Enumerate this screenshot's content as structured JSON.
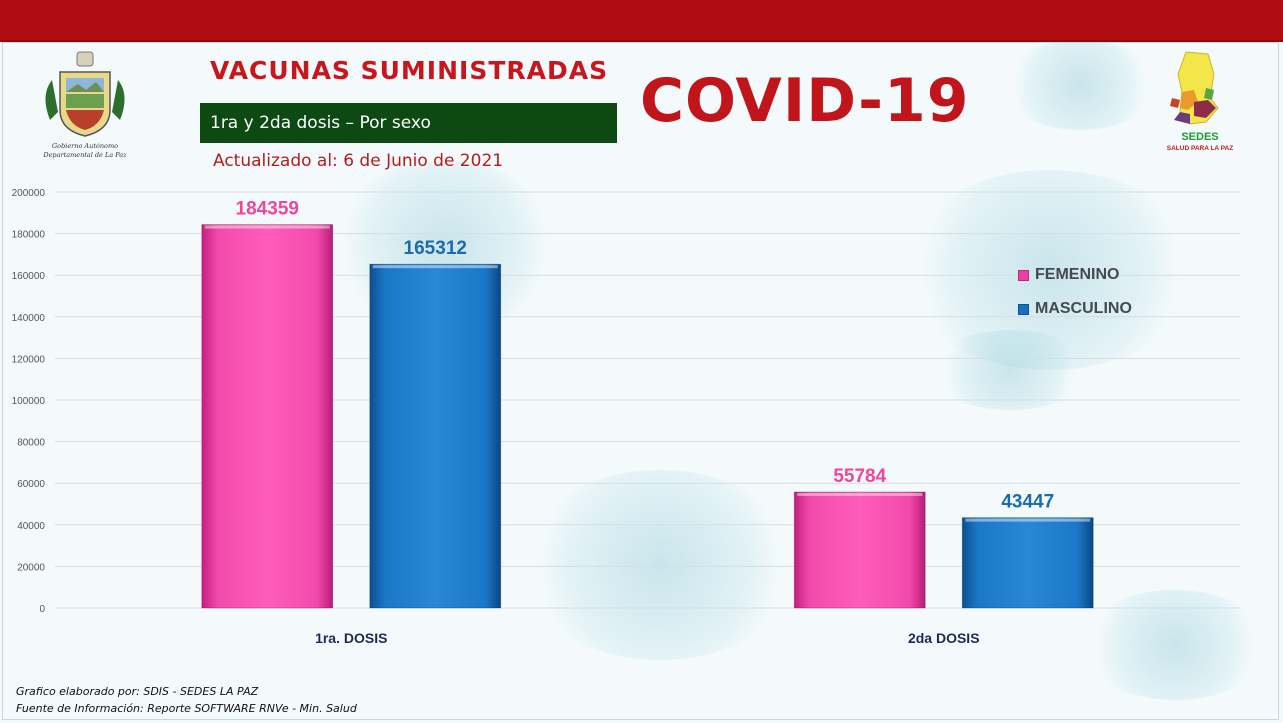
{
  "header": {
    "title": "VACUNAS  SUMINISTRADAS",
    "subtitle": "1ra y 2da dosis – Por sexo",
    "updated": "Actualizado al: 6 de Junio de 2021",
    "banner": "COVID-19"
  },
  "logos": {
    "left_line1": "Gobierno Autónomo",
    "left_line2": "Departamental de La Paz",
    "right_name": "SEDES",
    "right_tagline": "SALUD PARA LA PAZ"
  },
  "footer": {
    "line1": "Grafico elaborado por: SDIS - SEDES LA PAZ",
    "line2": "Fuente de Información: Reporte SOFTWARE RNVe - Min. Salud"
  },
  "colors": {
    "femenino": "#f03ca4",
    "masculino": "#1570c0",
    "femenino_label": "#f0459e",
    "masculino_label": "#1a6bb0",
    "banner_red": "#c0151b",
    "subtitle_green": "#0c4a12"
  },
  "chart_data": {
    "type": "bar",
    "title": "",
    "xlabel": "",
    "ylabel": "",
    "categories": [
      "1ra. DOSIS",
      "2da DOSIS"
    ],
    "series": [
      {
        "name": "FEMENINO",
        "values": [
          184359,
          55784
        ]
      },
      {
        "name": "MASCULINO",
        "values": [
          165312,
          43447
        ]
      }
    ],
    "ylim": [
      0,
      200000
    ],
    "yticks": [
      "0",
      "20000",
      "40000",
      "60000",
      "80000",
      "100000",
      "120000",
      "140000",
      "160000",
      "180000",
      "200000"
    ],
    "data_labels": [
      [
        "184359",
        "55784"
      ],
      [
        "165312",
        "43447"
      ]
    ],
    "grid": true,
    "legend": "right"
  }
}
